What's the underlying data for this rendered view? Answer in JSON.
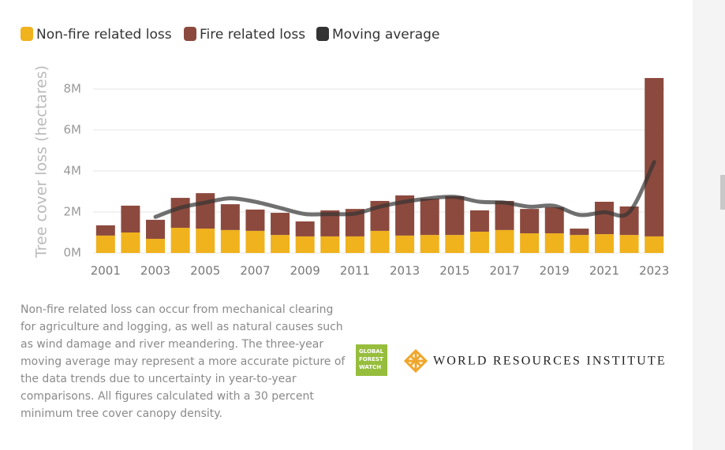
{
  "chart_data": {
    "type": "bar",
    "stacked": true,
    "y_label": "Tree cover loss (hectares)",
    "categories": [
      "2001",
      null,
      "2003",
      null,
      "2005",
      null,
      "2007",
      null,
      "2009",
      null,
      "2011",
      null,
      "2013",
      null,
      "2015",
      null,
      "2017",
      null,
      "2019",
      null,
      "2021",
      null,
      "2023"
    ],
    "series": [
      {
        "name": "Non-fire related loss",
        "color": "#f0b21d",
        "values": [
          850000,
          1000000,
          690000,
          1230000,
          1190000,
          1120000,
          1080000,
          880000,
          810000,
          810000,
          810000,
          1080000,
          850000,
          880000,
          880000,
          1040000,
          1120000,
          960000,
          960000,
          880000,
          920000,
          880000,
          810000
        ]
      },
      {
        "name": "Fire related loss",
        "color": "#8c4a3e",
        "values": [
          500000,
          1310000,
          930000,
          1460000,
          1730000,
          1260000,
          1040000,
          1080000,
          730000,
          1270000,
          1340000,
          1460000,
          1960000,
          1770000,
          1890000,
          1040000,
          1420000,
          1190000,
          1270000,
          310000,
          1580000,
          1390000,
          7730000
        ]
      },
      {
        "name": "Moving average",
        "color": "#333333",
        "type": "line",
        "values": [
          null,
          null,
          1760000,
          2210000,
          2460000,
          2670000,
          2500000,
          2200000,
          1900000,
          1900000,
          1920000,
          2260000,
          2500000,
          2670000,
          2740000,
          2500000,
          2460000,
          2260000,
          2300000,
          1860000,
          1990000,
          1990000,
          4440000
        ]
      }
    ],
    "ylim": [
      0,
      8540000
    ],
    "yticks": [
      {
        "value": 0,
        "label": "0M"
      },
      {
        "value": 2000000,
        "label": "2M"
      },
      {
        "value": 4000000,
        "label": "4M"
      },
      {
        "value": 6000000,
        "label": "6M"
      },
      {
        "value": 8000000,
        "label": "8M"
      }
    ],
    "grid": true,
    "legend": "top-left"
  },
  "footnote": [
    "Non-fire related loss can occur from mechanical clearing",
    "for agriculture and logging, as well as natural causes such",
    "as wind damage and river meandering. The three-year",
    "moving average may represent a more accurate picture of",
    "the data trends due to uncertainty in year-to-year",
    "comparisons. All figures calculated with a 30 percent",
    "minimum tree cover canopy density."
  ],
  "logos": {
    "gfw": [
      "GLOBAL",
      "FOREST",
      "WATCH"
    ],
    "wri": "WORLD RESOURCES INSTITUTE"
  }
}
